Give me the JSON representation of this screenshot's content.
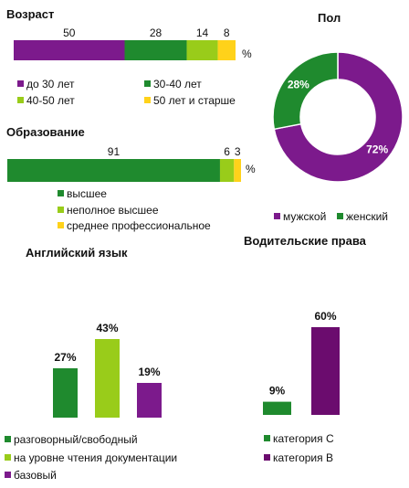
{
  "colors": {
    "purple": "#7c1a8c",
    "dark_purple": "#6b0c6e",
    "green": "#1f8a2e",
    "light_green": "#99cc1a",
    "yellow": "#ffd21a"
  },
  "chart_data": [
    {
      "id": "age",
      "type": "bar",
      "stacked": true,
      "orientation": "horizontal",
      "title": "Возраст",
      "unit": "%",
      "categories": [
        "до 30 лет",
        "30-40 лет",
        "40-50 лет",
        "50 лет и старше"
      ],
      "values": [
        50,
        28,
        14,
        8
      ],
      "colors": [
        "#7c1a8c",
        "#1f8a2e",
        "#99cc1a",
        "#ffd21a"
      ],
      "legend": "bottom"
    },
    {
      "id": "education",
      "type": "bar",
      "stacked": true,
      "orientation": "horizontal",
      "title": "Образование",
      "unit": "%",
      "categories": [
        "высшее",
        "неполное высшее",
        "среднее профессиональное"
      ],
      "values": [
        91,
        6,
        3
      ],
      "colors": [
        "#1f8a2e",
        "#99cc1a",
        "#ffd21a"
      ],
      "legend": "bottom"
    },
    {
      "id": "gender",
      "type": "pie",
      "donut": true,
      "title": "Пол",
      "categories": [
        "мужской",
        "женский"
      ],
      "values": [
        72,
        28
      ],
      "labels": [
        "72%",
        "28%"
      ],
      "colors": [
        "#7c1a8c",
        "#1f8a2e"
      ],
      "legend": "bottom"
    },
    {
      "id": "english",
      "type": "bar",
      "title": "Английский язык",
      "categories": [
        "разговорный/свободный",
        "на уровне чтения документации",
        "базовый"
      ],
      "values": [
        27,
        43,
        19
      ],
      "labels": [
        "27%",
        "43%",
        "19%"
      ],
      "colors": [
        "#1f8a2e",
        "#99cc1a",
        "#7c1a8c"
      ],
      "legend": "bottom"
    },
    {
      "id": "license",
      "type": "bar",
      "title": "Водительские права",
      "categories": [
        "категория С",
        "категория В"
      ],
      "values": [
        9,
        60
      ],
      "labels": [
        "9%",
        "60%"
      ],
      "colors": [
        "#1f8a2e",
        "#6b0c6e"
      ],
      "legend": "bottom"
    }
  ]
}
